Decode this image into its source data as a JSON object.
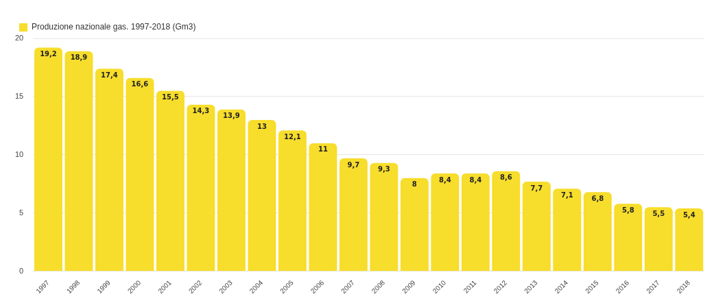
{
  "chart_data": {
    "type": "bar",
    "categories": [
      "1997",
      "1998",
      "1999",
      "2000",
      "2001",
      "2002",
      "2003",
      "2004",
      "2005",
      "2006",
      "2007",
      "2008",
      "2009",
      "2010",
      "2011",
      "2012",
      "2013",
      "2014",
      "2015",
      "2016",
      "2017",
      "2018"
    ],
    "series": [
      {
        "name": "Produzione nazionale gas. 1997-2018 (Gm3)",
        "color": "#f7dd2c",
        "values": [
          19.2,
          18.9,
          17.4,
          16.6,
          15.5,
          14.3,
          13.9,
          13,
          12.1,
          11,
          9.7,
          9.3,
          8,
          8.4,
          8.4,
          8.6,
          7.7,
          7.1,
          6.8,
          5.8,
          5.5,
          5.4
        ],
        "value_labels": [
          "19,2",
          "18,9",
          "17,4",
          "16,6",
          "15,5",
          "14,3",
          "13,9",
          "13",
          "12,1",
          "11",
          "9,7",
          "9,3",
          "8",
          "8,4",
          "8,4",
          "8,6",
          "7,7",
          "7,1",
          "6,8",
          "5,8",
          "5,5",
          "5,4"
        ]
      }
    ],
    "ylim": [
      0,
      20
    ],
    "yticks": [
      0,
      5,
      10,
      15,
      20
    ],
    "grid": "y",
    "legend": "top left"
  }
}
